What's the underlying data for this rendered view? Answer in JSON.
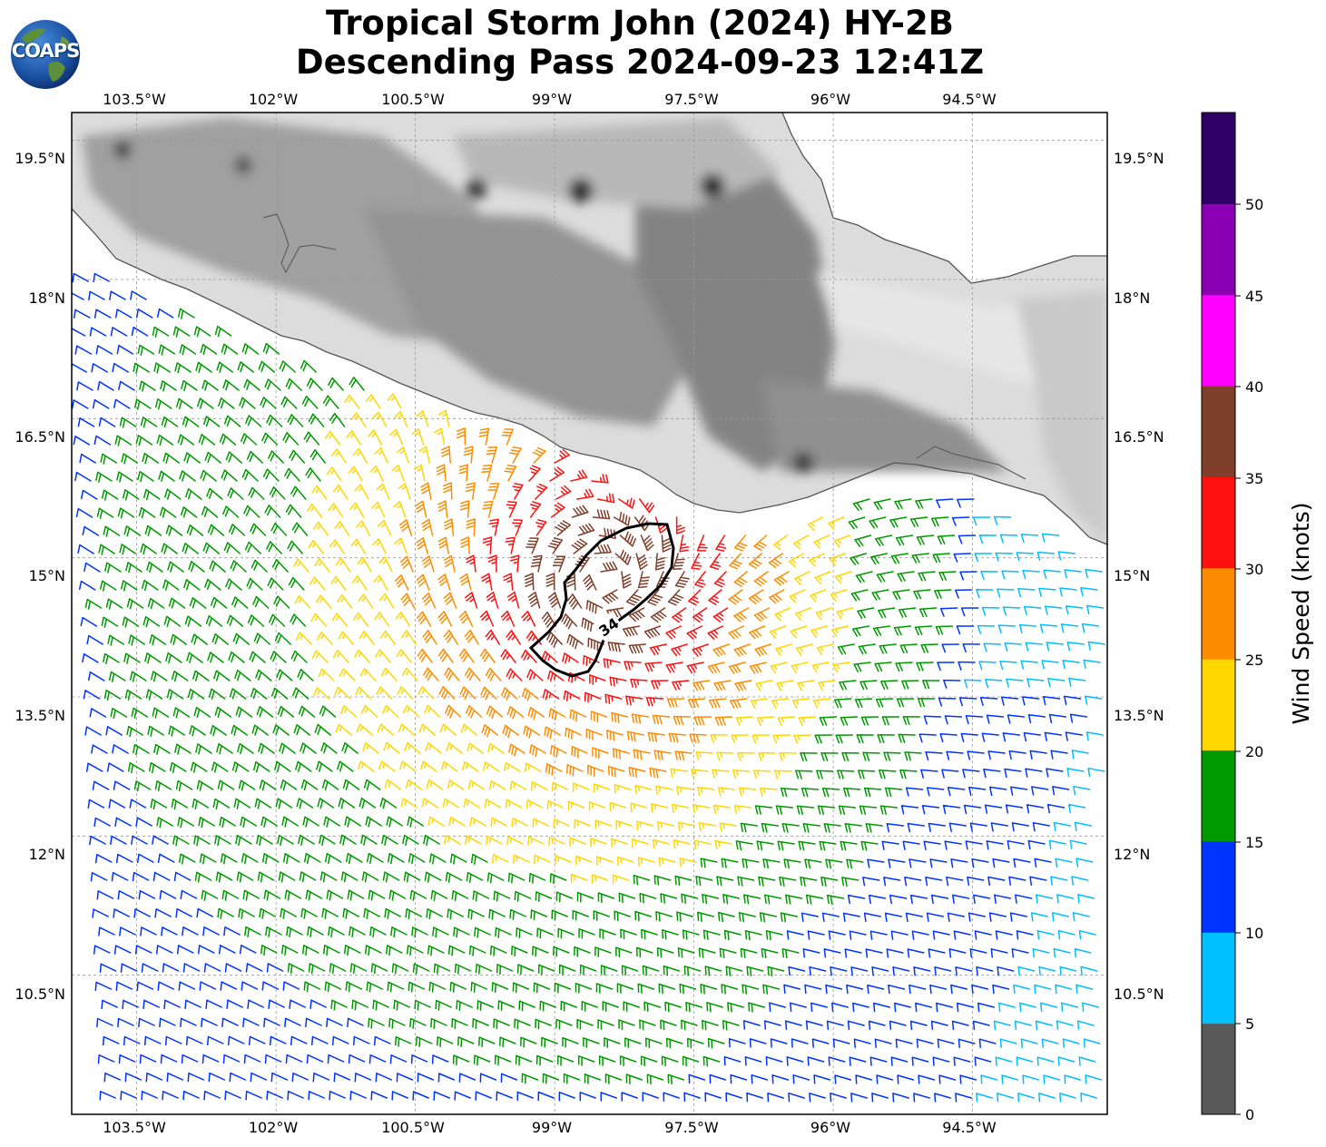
{
  "title": {
    "line1": "Tropical Storm John (2024) HY-2B",
    "line2": "Descending Pass 2024-09-23 12:41Z"
  },
  "logo": {
    "text": "COAPS"
  },
  "map": {
    "lon_labels": [
      "103.5°W",
      "102°W",
      "100.5°W",
      "99°W",
      "97.5°W",
      "96°W",
      "94.5°W"
    ],
    "lat_labels": [
      "19.5°N",
      "18°N",
      "16.5°N",
      "15°N",
      "13.5°N",
      "12°N",
      "10.5°N"
    ],
    "lon_values": [
      -103.5,
      -102,
      -100.5,
      -99,
      -97.5,
      -96,
      -94.5
    ],
    "lat_values": [
      19.5,
      18,
      16.5,
      15,
      13.5,
      12,
      10.5
    ],
    "lon_range": [
      -104.2,
      -93.05
    ],
    "lat_range": [
      9.0,
      19.8
    ],
    "grid": true,
    "contour_label": "34",
    "storm_center": [
      -98.45,
      14.75
    ]
  },
  "colorbar": {
    "title": "Wind Speed (knots)",
    "ticks": [
      "0",
      "5",
      "10",
      "15",
      "20",
      "25",
      "30",
      "35",
      "40",
      "45",
      "50"
    ],
    "bins": [
      {
        "min": 0,
        "max": 5,
        "color": "#595959"
      },
      {
        "min": 5,
        "max": 10,
        "color": "#00bfff"
      },
      {
        "min": 10,
        "max": 15,
        "color": "#0033ff"
      },
      {
        "min": 15,
        "max": 20,
        "color": "#009900"
      },
      {
        "min": 20,
        "max": 25,
        "color": "#ffd700"
      },
      {
        "min": 25,
        "max": 30,
        "color": "#ff8c00"
      },
      {
        "min": 30,
        "max": 35,
        "color": "#ff1010"
      },
      {
        "min": 35,
        "max": 40,
        "color": "#7f3f2a"
      },
      {
        "min": 40,
        "max": 45,
        "color": "#ff00ff"
      },
      {
        "min": 45,
        "max": 50,
        "color": "#8b00b3"
      },
      {
        "min": 50,
        "max": 55,
        "color": "#2e0066"
      }
    ]
  }
}
